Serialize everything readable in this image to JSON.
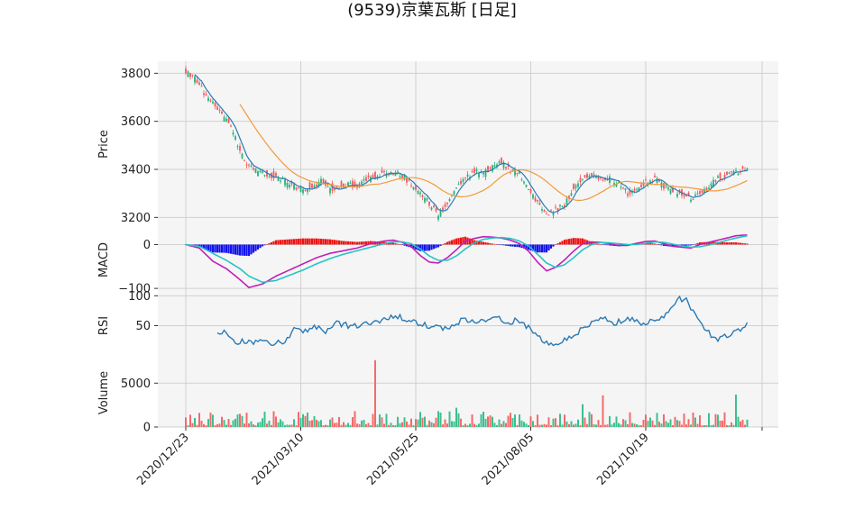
{
  "chart_data": {
    "type": "candlestick",
    "title": "(9539)京葉瓦斯 [日足]",
    "x_tick_labels": [
      "2020/12/23",
      "2021/03/10",
      "2021/05/25",
      "2021/08/05",
      "2021/10/19"
    ],
    "x_tick_indices": [
      0,
      51,
      102,
      153,
      204
    ],
    "n_days": 250,
    "colors": {
      "up": "#2bb07c",
      "down": "#f05a5a",
      "ma_short": "#2a7ab5",
      "ma_long": "#f29a3a",
      "macd": "#c21fb8",
      "signal": "#26c4c4",
      "hist_pos": "#ee1111",
      "hist_neg": "#1111ee",
      "rsi": "#2a7ab5",
      "vol_up": "#3cc08e",
      "vol_down": "#f46a6a",
      "panel_bg": "#f5f5f5",
      "grid": "#d0d0d0"
    },
    "price_panel": {
      "ylabel": "Price",
      "yticks": [
        3200,
        3400,
        3600,
        3800
      ],
      "ylim": [
        3160,
        3850
      ],
      "close_anchors": [
        [
          0,
          3810
        ],
        [
          4,
          3780
        ],
        [
          8,
          3720
        ],
        [
          12,
          3680
        ],
        [
          16,
          3630
        ],
        [
          20,
          3580
        ],
        [
          24,
          3480
        ],
        [
          28,
          3410
        ],
        [
          32,
          3390
        ],
        [
          36,
          3380
        ],
        [
          40,
          3370
        ],
        [
          44,
          3350
        ],
        [
          48,
          3330
        ],
        [
          52,
          3320
        ],
        [
          56,
          3330
        ],
        [
          60,
          3350
        ],
        [
          64,
          3320
        ],
        [
          68,
          3330
        ],
        [
          72,
          3340
        ],
        [
          76,
          3330
        ],
        [
          80,
          3360
        ],
        [
          84,
          3370
        ],
        [
          88,
          3380
        ],
        [
          92,
          3390
        ],
        [
          96,
          3370
        ],
        [
          100,
          3340
        ],
        [
          104,
          3300
        ],
        [
          108,
          3260
        ],
        [
          112,
          3210
        ],
        [
          116,
          3250
        ],
        [
          120,
          3320
        ],
        [
          124,
          3370
        ],
        [
          128,
          3390
        ],
        [
          132,
          3380
        ],
        [
          136,
          3410
        ],
        [
          140,
          3430
        ],
        [
          144,
          3400
        ],
        [
          148,
          3380
        ],
        [
          152,
          3320
        ],
        [
          156,
          3260
        ],
        [
          160,
          3210
        ],
        [
          164,
          3230
        ],
        [
          168,
          3250
        ],
        [
          172,
          3320
        ],
        [
          176,
          3370
        ],
        [
          180,
          3380
        ],
        [
          184,
          3360
        ],
        [
          188,
          3360
        ],
        [
          192,
          3340
        ],
        [
          196,
          3300
        ],
        [
          200,
          3310
        ],
        [
          204,
          3350
        ],
        [
          208,
          3360
        ],
        [
          212,
          3330
        ],
        [
          216,
          3310
        ],
        [
          220,
          3300
        ],
        [
          224,
          3280
        ],
        [
          228,
          3300
        ],
        [
          232,
          3330
        ],
        [
          236,
          3360
        ],
        [
          240,
          3380
        ],
        [
          244,
          3390
        ],
        [
          249,
          3400
        ]
      ]
    },
    "macd_panel": {
      "ylabel": "MACD",
      "yticks": [
        0,
        -100
      ],
      "ylim": [
        -110,
        40
      ],
      "macd_anchors": [
        [
          0,
          0
        ],
        [
          6,
          -8
        ],
        [
          12,
          -38
        ],
        [
          18,
          -55
        ],
        [
          24,
          -80
        ],
        [
          28,
          -98
        ],
        [
          34,
          -90
        ],
        [
          40,
          -72
        ],
        [
          46,
          -58
        ],
        [
          52,
          -44
        ],
        [
          58,
          -30
        ],
        [
          64,
          -20
        ],
        [
          70,
          -14
        ],
        [
          76,
          -8
        ],
        [
          82,
          2
        ],
        [
          88,
          8
        ],
        [
          92,
          10
        ],
        [
          96,
          5
        ],
        [
          100,
          -5
        ],
        [
          104,
          -25
        ],
        [
          108,
          -40
        ],
        [
          112,
          -42
        ],
        [
          116,
          -30
        ],
        [
          120,
          -12
        ],
        [
          124,
          8
        ],
        [
          128,
          14
        ],
        [
          132,
          18
        ],
        [
          136,
          17
        ],
        [
          140,
          15
        ],
        [
          144,
          10
        ],
        [
          148,
          2
        ],
        [
          152,
          -15
        ],
        [
          156,
          -40
        ],
        [
          160,
          -60
        ],
        [
          164,
          -52
        ],
        [
          168,
          -35
        ],
        [
          172,
          -15
        ],
        [
          176,
          2
        ],
        [
          180,
          6
        ],
        [
          184,
          5
        ],
        [
          188,
          2
        ],
        [
          192,
          -2
        ],
        [
          196,
          -2
        ],
        [
          200,
          3
        ],
        [
          204,
          7
        ],
        [
          208,
          8
        ],
        [
          212,
          2
        ],
        [
          216,
          -4
        ],
        [
          220,
          -6
        ],
        [
          224,
          -8
        ],
        [
          228,
          0
        ],
        [
          232,
          5
        ],
        [
          236,
          10
        ],
        [
          240,
          15
        ],
        [
          244,
          20
        ],
        [
          249,
          22
        ]
      ],
      "signal_anchors": [
        [
          0,
          0
        ],
        [
          6,
          -4
        ],
        [
          12,
          -20
        ],
        [
          18,
          -36
        ],
        [
          24,
          -55
        ],
        [
          28,
          -72
        ],
        [
          34,
          -86
        ],
        [
          40,
          -82
        ],
        [
          46,
          -70
        ],
        [
          52,
          -58
        ],
        [
          58,
          -44
        ],
        [
          64,
          -32
        ],
        [
          70,
          -22
        ],
        [
          76,
          -14
        ],
        [
          82,
          -6
        ],
        [
          88,
          2
        ],
        [
          92,
          6
        ],
        [
          96,
          6
        ],
        [
          100,
          2
        ],
        [
          104,
          -10
        ],
        [
          108,
          -26
        ],
        [
          112,
          -36
        ],
        [
          116,
          -36
        ],
        [
          120,
          -26
        ],
        [
          124,
          -10
        ],
        [
          128,
          4
        ],
        [
          132,
          12
        ],
        [
          136,
          15
        ],
        [
          140,
          16
        ],
        [
          144,
          14
        ],
        [
          148,
          8
        ],
        [
          152,
          -3
        ],
        [
          156,
          -22
        ],
        [
          160,
          -42
        ],
        [
          164,
          -52
        ],
        [
          168,
          -46
        ],
        [
          172,
          -30
        ],
        [
          176,
          -12
        ],
        [
          180,
          0
        ],
        [
          184,
          5
        ],
        [
          188,
          4
        ],
        [
          192,
          2
        ],
        [
          196,
          0
        ],
        [
          200,
          0
        ],
        [
          204,
          3
        ],
        [
          208,
          6
        ],
        [
          212,
          5
        ],
        [
          216,
          1
        ],
        [
          220,
          -3
        ],
        [
          224,
          -6
        ],
        [
          228,
          -5
        ],
        [
          232,
          -1
        ],
        [
          236,
          4
        ],
        [
          240,
          10
        ],
        [
          244,
          15
        ],
        [
          249,
          20
        ]
      ]
    },
    "rsi_panel": {
      "ylabel": "RSI",
      "yticks": [
        50,
        100
      ],
      "ylim": [
        -5,
        105
      ],
      "rsi_anchors": [
        [
          14,
          40
        ],
        [
          18,
          38
        ],
        [
          22,
          22
        ],
        [
          26,
          25
        ],
        [
          30,
          20
        ],
        [
          34,
          23
        ],
        [
          38,
          18
        ],
        [
          42,
          22
        ],
        [
          46,
          28
        ],
        [
          48,
          45
        ],
        [
          50,
          42
        ],
        [
          52,
          38
        ],
        [
          56,
          45
        ],
        [
          58,
          48
        ],
        [
          62,
          40
        ],
        [
          66,
          55
        ],
        [
          70,
          52
        ],
        [
          74,
          48
        ],
        [
          78,
          52
        ],
        [
          82,
          54
        ],
        [
          86,
          55
        ],
        [
          90,
          62
        ],
        [
          94,
          65
        ],
        [
          98,
          60
        ],
        [
          102,
          55
        ],
        [
          106,
          52
        ],
        [
          110,
          48
        ],
        [
          114,
          45
        ],
        [
          118,
          50
        ],
        [
          122,
          58
        ],
        [
          126,
          60
        ],
        [
          130,
          56
        ],
        [
          134,
          62
        ],
        [
          138,
          65
        ],
        [
          142,
          55
        ],
        [
          146,
          58
        ],
        [
          150,
          52
        ],
        [
          154,
          42
        ],
        [
          158,
          25
        ],
        [
          162,
          20
        ],
        [
          166,
          22
        ],
        [
          170,
          28
        ],
        [
          174,
          40
        ],
        [
          178,
          52
        ],
        [
          182,
          58
        ],
        [
          186,
          62
        ],
        [
          190,
          55
        ],
        [
          194,
          58
        ],
        [
          198,
          62
        ],
        [
          202,
          52
        ],
        [
          206,
          58
        ],
        [
          210,
          62
        ],
        [
          214,
          70
        ],
        [
          218,
          98
        ],
        [
          222,
          92
        ],
        [
          226,
          68
        ],
        [
          230,
          48
        ],
        [
          234,
          28
        ],
        [
          238,
          30
        ],
        [
          242,
          35
        ],
        [
          246,
          45
        ],
        [
          250,
          50
        ],
        [
          252,
          52
        ],
        [
          254,
          55
        ],
        [
          256,
          58
        ],
        [
          258,
          62
        ],
        [
          260,
          62
        ],
        [
          262,
          60
        ],
        [
          264,
          62
        ],
        [
          266,
          55
        ],
        [
          268,
          52
        ],
        [
          249,
          52
        ]
      ]
    },
    "volume_panel": {
      "ylabel": "Volume",
      "yticks": [
        0,
        5000
      ],
      "ylim": [
        0,
        7800
      ]
    }
  }
}
